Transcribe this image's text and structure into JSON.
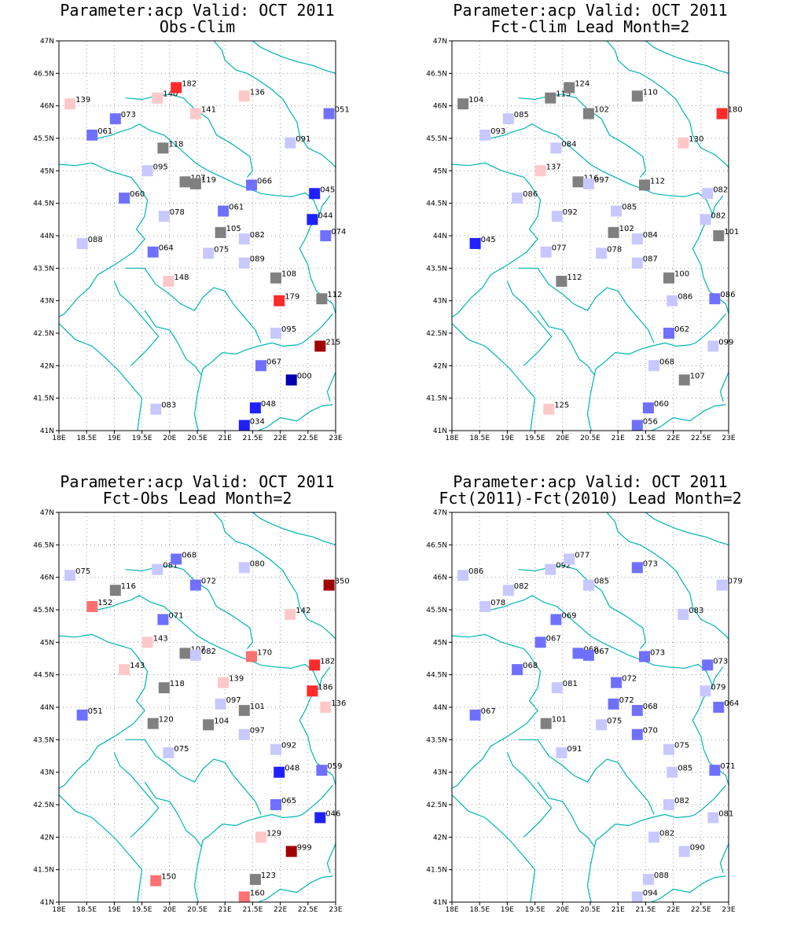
{
  "colors": {
    "darkred": "#a00000",
    "red": "#ff2a2a",
    "lightred": "#ff7070",
    "pink": "#ffc8c8",
    "gray": "#808080",
    "lightblue": "#c8c8ff",
    "midblue": "#7070ff",
    "blue": "#2020ff",
    "darkblue": "#0000b0",
    "border": "#00b5b5"
  },
  "map": {
    "lon_range": [
      18,
      23
    ],
    "lat_range": [
      41,
      47
    ],
    "lon_ticks": [
      "18E",
      "18.5E",
      "19E",
      "19.5E",
      "20E",
      "20.5E",
      "21E",
      "21.5E",
      "22E",
      "22.5E",
      "23E"
    ],
    "lat_ticks": [
      "41N",
      "41.5N",
      "42N",
      "42.5N",
      "43N",
      "43.5N",
      "44N",
      "44.5N",
      "45N",
      "45.5N",
      "46N",
      "46.5N",
      "47N"
    ]
  },
  "panels": [
    {
      "title1": "Parameter:acp Valid: OCT 2011",
      "title2": "Obs-Clim",
      "stations": [
        {
          "lon": 18.2,
          "lat": 46.03,
          "v": "139",
          "c": "pink"
        },
        {
          "lon": 19.02,
          "lat": 45.8,
          "v": "073",
          "c": "midblue"
        },
        {
          "lon": 19.78,
          "lat": 46.12,
          "v": "140",
          "c": "pink"
        },
        {
          "lon": 20.12,
          "lat": 46.28,
          "v": "182",
          "c": "red"
        },
        {
          "lon": 20.47,
          "lat": 45.88,
          "v": "141",
          "c": "pink"
        },
        {
          "lon": 21.35,
          "lat": 46.15,
          "v": "136",
          "c": "pink"
        },
        {
          "lon": 22.88,
          "lat": 45.88,
          "v": "051",
          "c": "midblue"
        },
        {
          "lon": 18.6,
          "lat": 45.55,
          "v": "061",
          "c": "midblue"
        },
        {
          "lon": 19.88,
          "lat": 45.35,
          "v": "118",
          "c": "gray"
        },
        {
          "lon": 22.18,
          "lat": 45.43,
          "v": "091",
          "c": "lightblue"
        },
        {
          "lon": 19.6,
          "lat": 45.0,
          "v": "095",
          "c": "lightblue"
        },
        {
          "lon": 20.28,
          "lat": 44.83,
          "v": "107",
          "c": "gray"
        },
        {
          "lon": 20.47,
          "lat": 44.8,
          "v": "119",
          "c": "gray"
        },
        {
          "lon": 21.48,
          "lat": 44.78,
          "v": "066",
          "c": "midblue"
        },
        {
          "lon": 22.62,
          "lat": 44.65,
          "v": "045",
          "c": "blue"
        },
        {
          "lon": 19.18,
          "lat": 44.58,
          "v": "060",
          "c": "midblue"
        },
        {
          "lon": 19.9,
          "lat": 44.3,
          "v": "078",
          "c": "lightblue"
        },
        {
          "lon": 20.97,
          "lat": 44.38,
          "v": "061",
          "c": "midblue"
        },
        {
          "lon": 22.58,
          "lat": 44.25,
          "v": "044",
          "c": "blue"
        },
        {
          "lon": 18.42,
          "lat": 43.88,
          "v": "088",
          "c": "lightblue"
        },
        {
          "lon": 20.92,
          "lat": 44.05,
          "v": "105",
          "c": "gray"
        },
        {
          "lon": 21.35,
          "lat": 43.95,
          "v": "082",
          "c": "lightblue"
        },
        {
          "lon": 22.82,
          "lat": 44.0,
          "v": "074",
          "c": "midblue"
        },
        {
          "lon": 19.7,
          "lat": 43.75,
          "v": "064",
          "c": "midblue"
        },
        {
          "lon": 20.7,
          "lat": 43.73,
          "v": "075",
          "c": "lightblue"
        },
        {
          "lon": 21.35,
          "lat": 43.58,
          "v": "089",
          "c": "lightblue"
        },
        {
          "lon": 19.98,
          "lat": 43.3,
          "v": "148",
          "c": "pink"
        },
        {
          "lon": 21.92,
          "lat": 43.35,
          "v": "108",
          "c": "gray"
        },
        {
          "lon": 21.98,
          "lat": 43.0,
          "v": "179",
          "c": "red"
        },
        {
          "lon": 22.75,
          "lat": 43.03,
          "v": "112",
          "c": "gray"
        },
        {
          "lon": 21.92,
          "lat": 42.5,
          "v": "095",
          "c": "lightblue"
        },
        {
          "lon": 22.72,
          "lat": 42.3,
          "v": "215",
          "c": "darkred"
        },
        {
          "lon": 21.65,
          "lat": 42.0,
          "v": "067",
          "c": "midblue"
        },
        {
          "lon": 22.2,
          "lat": 41.78,
          "v": "000",
          "c": "darkblue"
        },
        {
          "lon": 19.75,
          "lat": 41.33,
          "v": "083",
          "c": "lightblue"
        },
        {
          "lon": 21.55,
          "lat": 41.35,
          "v": "048",
          "c": "blue"
        },
        {
          "lon": 21.35,
          "lat": 41.08,
          "v": "034",
          "c": "blue"
        }
      ]
    },
    {
      "title1": "Parameter:acp Valid: OCT 2011",
      "title2": "Fct-Clim Lead Month=2",
      "stations": [
        {
          "lon": 18.2,
          "lat": 46.03,
          "v": "104",
          "c": "gray"
        },
        {
          "lon": 19.02,
          "lat": 45.8,
          "v": "085",
          "c": "lightblue"
        },
        {
          "lon": 19.78,
          "lat": 46.12,
          "v": "115",
          "c": "gray"
        },
        {
          "lon": 20.12,
          "lat": 46.28,
          "v": "124",
          "c": "gray"
        },
        {
          "lon": 20.47,
          "lat": 45.88,
          "v": "102",
          "c": "gray"
        },
        {
          "lon": 21.35,
          "lat": 46.15,
          "v": "110",
          "c": "gray"
        },
        {
          "lon": 22.88,
          "lat": 45.88,
          "v": "180",
          "c": "red"
        },
        {
          "lon": 18.6,
          "lat": 45.55,
          "v": "093",
          "c": "lightblue"
        },
        {
          "lon": 19.88,
          "lat": 45.35,
          "v": "084",
          "c": "lightblue"
        },
        {
          "lon": 22.18,
          "lat": 45.43,
          "v": "130",
          "c": "pink"
        },
        {
          "lon": 19.6,
          "lat": 45.0,
          "v": "137",
          "c": "pink"
        },
        {
          "lon": 20.28,
          "lat": 44.83,
          "v": "116",
          "c": "gray"
        },
        {
          "lon": 20.47,
          "lat": 44.8,
          "v": "097",
          "c": "lightblue"
        },
        {
          "lon": 21.48,
          "lat": 44.78,
          "v": "112",
          "c": "gray"
        },
        {
          "lon": 22.62,
          "lat": 44.65,
          "v": "082",
          "c": "lightblue"
        },
        {
          "lon": 19.18,
          "lat": 44.58,
          "v": "086",
          "c": "lightblue"
        },
        {
          "lon": 19.9,
          "lat": 44.3,
          "v": "092",
          "c": "lightblue"
        },
        {
          "lon": 20.97,
          "lat": 44.38,
          "v": "085",
          "c": "lightblue"
        },
        {
          "lon": 22.58,
          "lat": 44.25,
          "v": "082",
          "c": "lightblue"
        },
        {
          "lon": 18.42,
          "lat": 43.88,
          "v": "045",
          "c": "blue"
        },
        {
          "lon": 20.92,
          "lat": 44.05,
          "v": "102",
          "c": "gray"
        },
        {
          "lon": 21.35,
          "lat": 43.95,
          "v": "084",
          "c": "lightblue"
        },
        {
          "lon": 22.82,
          "lat": 44.0,
          "v": "101",
          "c": "gray"
        },
        {
          "lon": 19.7,
          "lat": 43.75,
          "v": "077",
          "c": "lightblue"
        },
        {
          "lon": 20.7,
          "lat": 43.73,
          "v": "078",
          "c": "lightblue"
        },
        {
          "lon": 21.35,
          "lat": 43.58,
          "v": "087",
          "c": "lightblue"
        },
        {
          "lon": 19.98,
          "lat": 43.3,
          "v": "112",
          "c": "gray"
        },
        {
          "lon": 21.92,
          "lat": 43.35,
          "v": "100",
          "c": "gray"
        },
        {
          "lon": 21.98,
          "lat": 43.0,
          "v": "086",
          "c": "lightblue"
        },
        {
          "lon": 22.75,
          "lat": 43.03,
          "v": "086",
          "c": "midblue"
        },
        {
          "lon": 21.92,
          "lat": 42.5,
          "v": "062",
          "c": "midblue"
        },
        {
          "lon": 22.72,
          "lat": 42.3,
          "v": "099",
          "c": "lightblue"
        },
        {
          "lon": 21.65,
          "lat": 42.0,
          "v": "068",
          "c": "lightblue"
        },
        {
          "lon": 22.2,
          "lat": 41.78,
          "v": "107",
          "c": "gray"
        },
        {
          "lon": 19.75,
          "lat": 41.33,
          "v": "125",
          "c": "pink"
        },
        {
          "lon": 21.55,
          "lat": 41.35,
          "v": "060",
          "c": "midblue"
        },
        {
          "lon": 21.35,
          "lat": 41.08,
          "v": "056",
          "c": "midblue"
        }
      ]
    },
    {
      "title1": "Parameter:acp Valid: OCT 2011",
      "title2": "Fct-Obs Lead Month=2",
      "stations": [
        {
          "lon": 18.2,
          "lat": 46.03,
          "v": "075",
          "c": "lightblue"
        },
        {
          "lon": 19.02,
          "lat": 45.8,
          "v": "116",
          "c": "gray"
        },
        {
          "lon": 19.78,
          "lat": 46.12,
          "v": "081",
          "c": "lightblue"
        },
        {
          "lon": 20.12,
          "lat": 46.28,
          "v": "068",
          "c": "midblue"
        },
        {
          "lon": 20.47,
          "lat": 45.88,
          "v": "072",
          "c": "midblue"
        },
        {
          "lon": 21.35,
          "lat": 46.15,
          "v": "080",
          "c": "lightblue"
        },
        {
          "lon": 22.88,
          "lat": 45.88,
          "v": "350",
          "c": "darkred"
        },
        {
          "lon": 18.6,
          "lat": 45.55,
          "v": "152",
          "c": "lightred"
        },
        {
          "lon": 19.88,
          "lat": 45.35,
          "v": "071",
          "c": "midblue"
        },
        {
          "lon": 22.18,
          "lat": 45.43,
          "v": "142",
          "c": "pink"
        },
        {
          "lon": 19.6,
          "lat": 45.0,
          "v": "143",
          "c": "pink"
        },
        {
          "lon": 20.28,
          "lat": 44.83,
          "v": "107",
          "c": "gray"
        },
        {
          "lon": 20.47,
          "lat": 44.8,
          "v": "082",
          "c": "lightblue"
        },
        {
          "lon": 21.48,
          "lat": 44.78,
          "v": "170",
          "c": "lightred"
        },
        {
          "lon": 22.62,
          "lat": 44.65,
          "v": "182",
          "c": "red"
        },
        {
          "lon": 19.18,
          "lat": 44.58,
          "v": "143",
          "c": "pink"
        },
        {
          "lon": 19.9,
          "lat": 44.3,
          "v": "118",
          "c": "gray"
        },
        {
          "lon": 20.97,
          "lat": 44.38,
          "v": "139",
          "c": "pink"
        },
        {
          "lon": 22.58,
          "lat": 44.25,
          "v": "186",
          "c": "red"
        },
        {
          "lon": 18.42,
          "lat": 43.88,
          "v": "051",
          "c": "midblue"
        },
        {
          "lon": 20.92,
          "lat": 44.05,
          "v": "097",
          "c": "lightblue"
        },
        {
          "lon": 21.35,
          "lat": 43.95,
          "v": "101",
          "c": "gray"
        },
        {
          "lon": 22.82,
          "lat": 44.0,
          "v": "136",
          "c": "pink"
        },
        {
          "lon": 19.7,
          "lat": 43.75,
          "v": "120",
          "c": "gray"
        },
        {
          "lon": 20.7,
          "lat": 43.73,
          "v": "104",
          "c": "gray"
        },
        {
          "lon": 21.35,
          "lat": 43.58,
          "v": "097",
          "c": "lightblue"
        },
        {
          "lon": 19.98,
          "lat": 43.3,
          "v": "075",
          "c": "lightblue"
        },
        {
          "lon": 21.92,
          "lat": 43.35,
          "v": "092",
          "c": "lightblue"
        },
        {
          "lon": 21.98,
          "lat": 43.0,
          "v": "048",
          "c": "blue"
        },
        {
          "lon": 22.75,
          "lat": 43.03,
          "v": "059",
          "c": "midblue"
        },
        {
          "lon": 21.92,
          "lat": 42.5,
          "v": "065",
          "c": "midblue"
        },
        {
          "lon": 22.72,
          "lat": 42.3,
          "v": "046",
          "c": "blue"
        },
        {
          "lon": 21.65,
          "lat": 42.0,
          "v": "129",
          "c": "pink"
        },
        {
          "lon": 22.2,
          "lat": 41.78,
          "v": "999",
          "c": "darkred"
        },
        {
          "lon": 19.75,
          "lat": 41.33,
          "v": "150",
          "c": "lightred"
        },
        {
          "lon": 21.55,
          "lat": 41.35,
          "v": "123",
          "c": "gray"
        },
        {
          "lon": 21.35,
          "lat": 41.08,
          "v": "160",
          "c": "lightred"
        }
      ]
    },
    {
      "title1": "Parameter:acp Valid: OCT 2011",
      "title2": "Fct(2011)-Fct(2010) Lead Month=2",
      "stations": [
        {
          "lon": 18.2,
          "lat": 46.03,
          "v": "086",
          "c": "lightblue"
        },
        {
          "lon": 19.02,
          "lat": 45.8,
          "v": "082",
          "c": "lightblue"
        },
        {
          "lon": 19.78,
          "lat": 46.12,
          "v": "092",
          "c": "lightblue"
        },
        {
          "lon": 20.12,
          "lat": 46.28,
          "v": "077",
          "c": "lightblue"
        },
        {
          "lon": 20.47,
          "lat": 45.88,
          "v": "085",
          "c": "lightblue"
        },
        {
          "lon": 21.35,
          "lat": 46.15,
          "v": "073",
          "c": "midblue"
        },
        {
          "lon": 22.88,
          "lat": 45.88,
          "v": "079",
          "c": "lightblue"
        },
        {
          "lon": 18.6,
          "lat": 45.55,
          "v": "078",
          "c": "lightblue"
        },
        {
          "lon": 19.88,
          "lat": 45.35,
          "v": "069",
          "c": "midblue"
        },
        {
          "lon": 22.18,
          "lat": 45.43,
          "v": "083",
          "c": "lightblue"
        },
        {
          "lon": 19.6,
          "lat": 45.0,
          "v": "067",
          "c": "midblue"
        },
        {
          "lon": 20.28,
          "lat": 44.83,
          "v": "068",
          "c": "midblue"
        },
        {
          "lon": 20.47,
          "lat": 44.8,
          "v": "067",
          "c": "midblue"
        },
        {
          "lon": 21.48,
          "lat": 44.78,
          "v": "073",
          "c": "midblue"
        },
        {
          "lon": 22.62,
          "lat": 44.65,
          "v": "073",
          "c": "midblue"
        },
        {
          "lon": 19.18,
          "lat": 44.58,
          "v": "068",
          "c": "midblue"
        },
        {
          "lon": 19.9,
          "lat": 44.3,
          "v": "081",
          "c": "lightblue"
        },
        {
          "lon": 20.97,
          "lat": 44.38,
          "v": "072",
          "c": "midblue"
        },
        {
          "lon": 22.58,
          "lat": 44.25,
          "v": "079",
          "c": "lightblue"
        },
        {
          "lon": 18.42,
          "lat": 43.88,
          "v": "067",
          "c": "midblue"
        },
        {
          "lon": 20.92,
          "lat": 44.05,
          "v": "072",
          "c": "midblue"
        },
        {
          "lon": 21.35,
          "lat": 43.95,
          "v": "068",
          "c": "midblue"
        },
        {
          "lon": 22.82,
          "lat": 44.0,
          "v": "064",
          "c": "midblue"
        },
        {
          "lon": 19.7,
          "lat": 43.75,
          "v": "101",
          "c": "gray"
        },
        {
          "lon": 20.7,
          "lat": 43.73,
          "v": "075",
          "c": "lightblue"
        },
        {
          "lon": 21.35,
          "lat": 43.58,
          "v": "070",
          "c": "midblue"
        },
        {
          "lon": 19.98,
          "lat": 43.3,
          "v": "091",
          "c": "lightblue"
        },
        {
          "lon": 21.92,
          "lat": 43.35,
          "v": "075",
          "c": "lightblue"
        },
        {
          "lon": 21.98,
          "lat": 43.0,
          "v": "085",
          "c": "lightblue"
        },
        {
          "lon": 22.75,
          "lat": 43.03,
          "v": "071",
          "c": "midblue"
        },
        {
          "lon": 21.92,
          "lat": 42.5,
          "v": "082",
          "c": "lightblue"
        },
        {
          "lon": 22.72,
          "lat": 42.3,
          "v": "081",
          "c": "lightblue"
        },
        {
          "lon": 21.65,
          "lat": 42.0,
          "v": "082",
          "c": "lightblue"
        },
        {
          "lon": 22.2,
          "lat": 41.78,
          "v": "090",
          "c": "lightblue"
        },
        {
          "lon": 19.75,
          "lat": 41.33,
          "v": "",
          "c": "none"
        },
        {
          "lon": 21.55,
          "lat": 41.35,
          "v": "088",
          "c": "lightblue"
        },
        {
          "lon": 21.35,
          "lat": 41.08,
          "v": "094",
          "c": "lightblue"
        }
      ]
    }
  ]
}
